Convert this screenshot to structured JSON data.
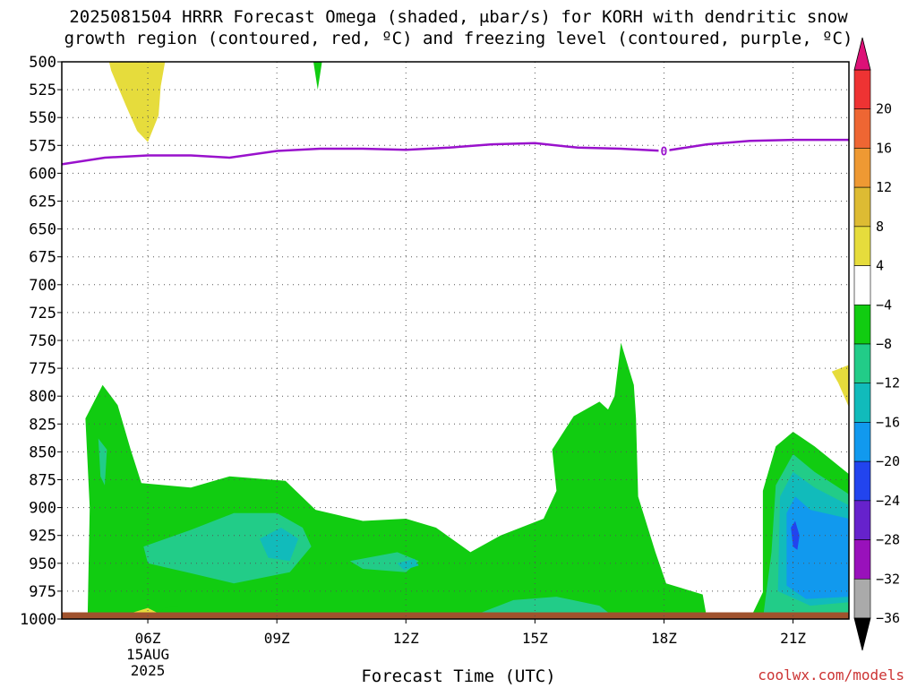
{
  "title": {
    "line1": "2025081504 HRRR Forecast Omega (shaded, μbar/s) for KORH with dendritic snow",
    "line2": "growth region (contoured, red, ºC) and freezing level (contoured, purple, ºC)"
  },
  "xlabel": "Forecast Time (UTC)",
  "credit": "coolwx.com/models",
  "chart_data": {
    "type": "heatmap",
    "ylabel": "",
    "y_axis": {
      "range": [
        500,
        1000
      ],
      "inverted": true,
      "ticks": [
        500,
        525,
        550,
        575,
        600,
        625,
        650,
        675,
        700,
        725,
        750,
        775,
        800,
        825,
        850,
        875,
        900,
        925,
        950,
        975,
        1000
      ]
    },
    "x_axis": {
      "range_hours": [
        4,
        22.3
      ],
      "ticks": [
        {
          "hour": 6,
          "label": "06Z",
          "sub1": "15AUG",
          "sub2": "2025"
        },
        {
          "hour": 9,
          "label": "09Z"
        },
        {
          "hour": 12,
          "label": "12Z"
        },
        {
          "hour": 15,
          "label": "15Z"
        },
        {
          "hour": 18,
          "label": "18Z"
        },
        {
          "hour": 21,
          "label": "21Z"
        }
      ]
    },
    "grid": true,
    "colorbar": {
      "levels": [
        "20",
        "16",
        "12",
        "8",
        "4",
        "−4",
        "−8",
        "−12",
        "−16",
        "−20",
        "−24",
        "−28",
        "−32",
        "−36"
      ],
      "bands": [
        "#dd1177",
        "#ee3333",
        "#ee6633",
        "#ee9933",
        "#ddbb33",
        "#e6dc3c",
        "#ffffff",
        "#11cc11",
        "#22cc88",
        "#11bbbb",
        "#1199ee",
        "#2244ee",
        "#6622cc",
        "#9911bb",
        "#aaaaaa",
        "#000000"
      ]
    },
    "freezing_level": {
      "label": "0",
      "color": "#9911cc",
      "hours": [
        4.0,
        5.0,
        6.0,
        7.0,
        7.9,
        9.0,
        10.0,
        11.0,
        12.0,
        13.0,
        14.0,
        15.0,
        16.0,
        17.0,
        18.0,
        19.0,
        20.0,
        21.0,
        22.3
      ],
      "pressure": [
        592,
        586,
        584,
        584,
        586,
        580,
        578,
        578,
        579,
        577,
        574,
        573,
        577,
        578,
        580,
        574,
        571,
        570,
        570
      ]
    },
    "omega_regions": [
      {
        "value_class": "4 to 8",
        "color": "#e6dc3c",
        "points": [
          [
            5.1,
            500
          ],
          [
            6.4,
            500
          ],
          [
            6.3,
            522
          ],
          [
            6.25,
            548
          ],
          [
            6.0,
            572
          ],
          [
            5.75,
            562
          ],
          [
            5.5,
            540
          ],
          [
            5.15,
            508
          ]
        ]
      },
      {
        "value_class": "-4 to -8",
        "color": "#11cc11",
        "points": [
          [
            9.85,
            500
          ],
          [
            10.05,
            500
          ],
          [
            9.95,
            525
          ]
        ]
      },
      {
        "value_class": "-4 to -8",
        "color": "#11cc11",
        "points": [
          [
            4.55,
            820
          ],
          [
            4.95,
            790
          ],
          [
            5.3,
            808
          ],
          [
            5.6,
            848
          ],
          [
            5.85,
            878
          ],
          [
            7.0,
            882
          ],
          [
            7.9,
            872
          ],
          [
            9.2,
            876
          ],
          [
            9.9,
            902
          ],
          [
            11.0,
            912
          ],
          [
            12.0,
            910
          ],
          [
            12.7,
            918
          ],
          [
            13.5,
            940
          ],
          [
            14.2,
            925
          ],
          [
            15.2,
            910
          ],
          [
            15.5,
            885
          ],
          [
            15.4,
            848
          ],
          [
            15.9,
            818
          ],
          [
            16.5,
            805
          ],
          [
            16.7,
            812
          ],
          [
            16.85,
            800
          ],
          [
            17.0,
            752
          ],
          [
            17.3,
            790
          ],
          [
            17.35,
            820
          ],
          [
            17.4,
            890
          ],
          [
            17.8,
            940
          ],
          [
            18.05,
            968
          ],
          [
            18.9,
            978
          ],
          [
            19.0,
            1000
          ],
          [
            4.6,
            1000
          ],
          [
            4.65,
            900
          ]
        ]
      },
      {
        "value_class": "-4 to -8",
        "color": "#11cc11",
        "points": [
          [
            20.0,
            1000
          ],
          [
            20.3,
            976
          ],
          [
            20.3,
            885
          ],
          [
            20.6,
            845
          ],
          [
            21.0,
            832
          ],
          [
            21.5,
            845
          ],
          [
            22.3,
            870
          ],
          [
            22.3,
            1000
          ]
        ]
      },
      {
        "value_class": "-4 to -8",
        "color": "#11cc11",
        "points": [
          [
            6.0,
            1000
          ],
          [
            6.4,
            990
          ],
          [
            6.7,
            988
          ],
          [
            6.9,
            1000
          ]
        ]
      },
      {
        "value_class": "4 to 8",
        "color": "#e6dc3c",
        "points": [
          [
            22.3,
            772
          ],
          [
            22.3,
            810
          ],
          [
            22.05,
            788
          ],
          [
            21.9,
            778
          ]
        ]
      },
      {
        "value_class": "-8 to -12",
        "color": "#22cc88",
        "points": [
          [
            5.9,
            935
          ],
          [
            7.0,
            920
          ],
          [
            8.0,
            905
          ],
          [
            9.0,
            905
          ],
          [
            9.6,
            918
          ],
          [
            9.8,
            935
          ],
          [
            9.3,
            958
          ],
          [
            8.0,
            968
          ],
          [
            6.9,
            958
          ],
          [
            6.0,
            950
          ]
        ]
      },
      {
        "value_class": "-8 to -12",
        "color": "#22cc88",
        "points": [
          [
            4.85,
            838
          ],
          [
            5.05,
            848
          ],
          [
            5.0,
            880
          ],
          [
            4.9,
            872
          ]
        ]
      },
      {
        "value_class": "-8 to -12",
        "color": "#22cc88",
        "points": [
          [
            10.7,
            948
          ],
          [
            11.8,
            940
          ],
          [
            12.3,
            948
          ],
          [
            12.0,
            958
          ],
          [
            11.0,
            955
          ]
        ]
      },
      {
        "value_class": "-8 to -12",
        "color": "#22cc88",
        "points": [
          [
            13.7,
            995
          ],
          [
            14.5,
            983
          ],
          [
            15.5,
            980
          ],
          [
            16.5,
            988
          ],
          [
            16.9,
            1000
          ],
          [
            13.6,
            1000
          ]
        ]
      },
      {
        "value_class": "-8 to -12",
        "color": "#22cc88",
        "points": [
          [
            20.3,
            1000
          ],
          [
            20.5,
            940
          ],
          [
            20.6,
            880
          ],
          [
            21.0,
            852
          ],
          [
            21.5,
            868
          ],
          [
            22.3,
            888
          ],
          [
            22.3,
            1000
          ]
        ]
      },
      {
        "value_class": "-12 to -16",
        "color": "#11bbbb",
        "points": [
          [
            8.6,
            928
          ],
          [
            9.1,
            918
          ],
          [
            9.5,
            928
          ],
          [
            9.3,
            948
          ],
          [
            8.8,
            945
          ]
        ]
      },
      {
        "value_class": "-12 to -16",
        "color": "#11bbbb",
        "points": [
          [
            11.8,
            950
          ],
          [
            12.2,
            946
          ],
          [
            12.3,
            952
          ],
          [
            11.95,
            956
          ]
        ]
      },
      {
        "value_class": "-12 to -16",
        "color": "#11bbbb",
        "points": [
          [
            20.65,
            975
          ],
          [
            20.7,
            890
          ],
          [
            21.0,
            868
          ],
          [
            21.5,
            882
          ],
          [
            22.3,
            898
          ],
          [
            22.3,
            985
          ],
          [
            21.4,
            988
          ]
        ]
      },
      {
        "value_class": "-16 to -20",
        "color": "#1199ee",
        "points": [
          [
            20.85,
            970
          ],
          [
            20.85,
            905
          ],
          [
            21.05,
            890
          ],
          [
            21.4,
            902
          ],
          [
            22.3,
            910
          ],
          [
            22.3,
            980
          ],
          [
            21.3,
            982
          ]
        ]
      },
      {
        "value_class": "-20 to -24",
        "color": "#2244ee",
        "points": [
          [
            20.95,
            918
          ],
          [
            21.05,
            912
          ],
          [
            21.15,
            925
          ],
          [
            21.1,
            938
          ],
          [
            21.0,
            935
          ]
        ]
      },
      {
        "value_class": "4 to 8",
        "color": "#e6dc3c",
        "points": [
          [
            5.5,
            996
          ],
          [
            6.0,
            990
          ],
          [
            6.2,
            994
          ],
          [
            6.1,
            997
          ],
          [
            5.6,
            998
          ]
        ]
      }
    ],
    "terrain": {
      "color": "#a0522d",
      "top_pressure": 994
    }
  }
}
